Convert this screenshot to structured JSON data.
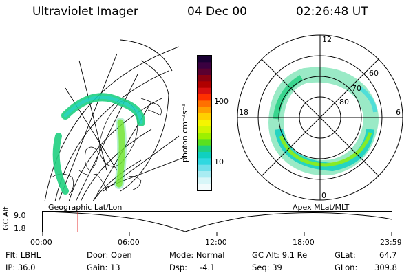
{
  "header": {
    "instrument": "Ultraviolet Imager",
    "date": "04 Dec 00",
    "time": "02:26:48 UT"
  },
  "colorbar": {
    "unit_label": "photon cm⁻²s⁻¹",
    "tick_100": "100",
    "tick_10": "10",
    "colors_top_to_bottom": [
      "#1a0033",
      "#3a0040",
      "#5a0030",
      "#8a0010",
      "#b00000",
      "#d81010",
      "#ff3000",
      "#ff7000",
      "#ff9f00",
      "#ffd000",
      "#f5f500",
      "#d0f500",
      "#9df000",
      "#5ae020",
      "#20d080",
      "#10d0c0",
      "#30d8e0",
      "#70e0ea",
      "#a8ecf2",
      "#d8f6f8",
      "#f2fbfc"
    ]
  },
  "left_map": {
    "label": "Geographic Lat/Lon"
  },
  "right_polar": {
    "label": "Apex MLat/MLT",
    "mlt_labels": {
      "top": "12",
      "left": "18",
      "right": "6",
      "bottom": "0"
    },
    "lat_labels": [
      "60",
      "70",
      "80"
    ]
  },
  "timeline": {
    "ylabel": "GC Alt",
    "y_top": "9.0",
    "y_bottom": "1.8",
    "ticks": [
      "00:00",
      "06:00",
      "12:00",
      "18:00",
      "23:59"
    ],
    "current_time_marker_fraction": 0.101
  },
  "info": {
    "flt": "Flt: LBHL",
    "ip": "IP: 36.0",
    "door": "Door: Open",
    "gain": "Gain: 13",
    "mode": "Mode: Normal",
    "dsp_label": "Dsp:",
    "dsp_value": "-4.1",
    "gc_alt": "GC Alt: 9.1 Re",
    "seq": "Seq: 39",
    "glat_label": "GLat:",
    "glat_value": "64.7",
    "glon_label": "GLon:",
    "glon_value": "309.8"
  }
}
